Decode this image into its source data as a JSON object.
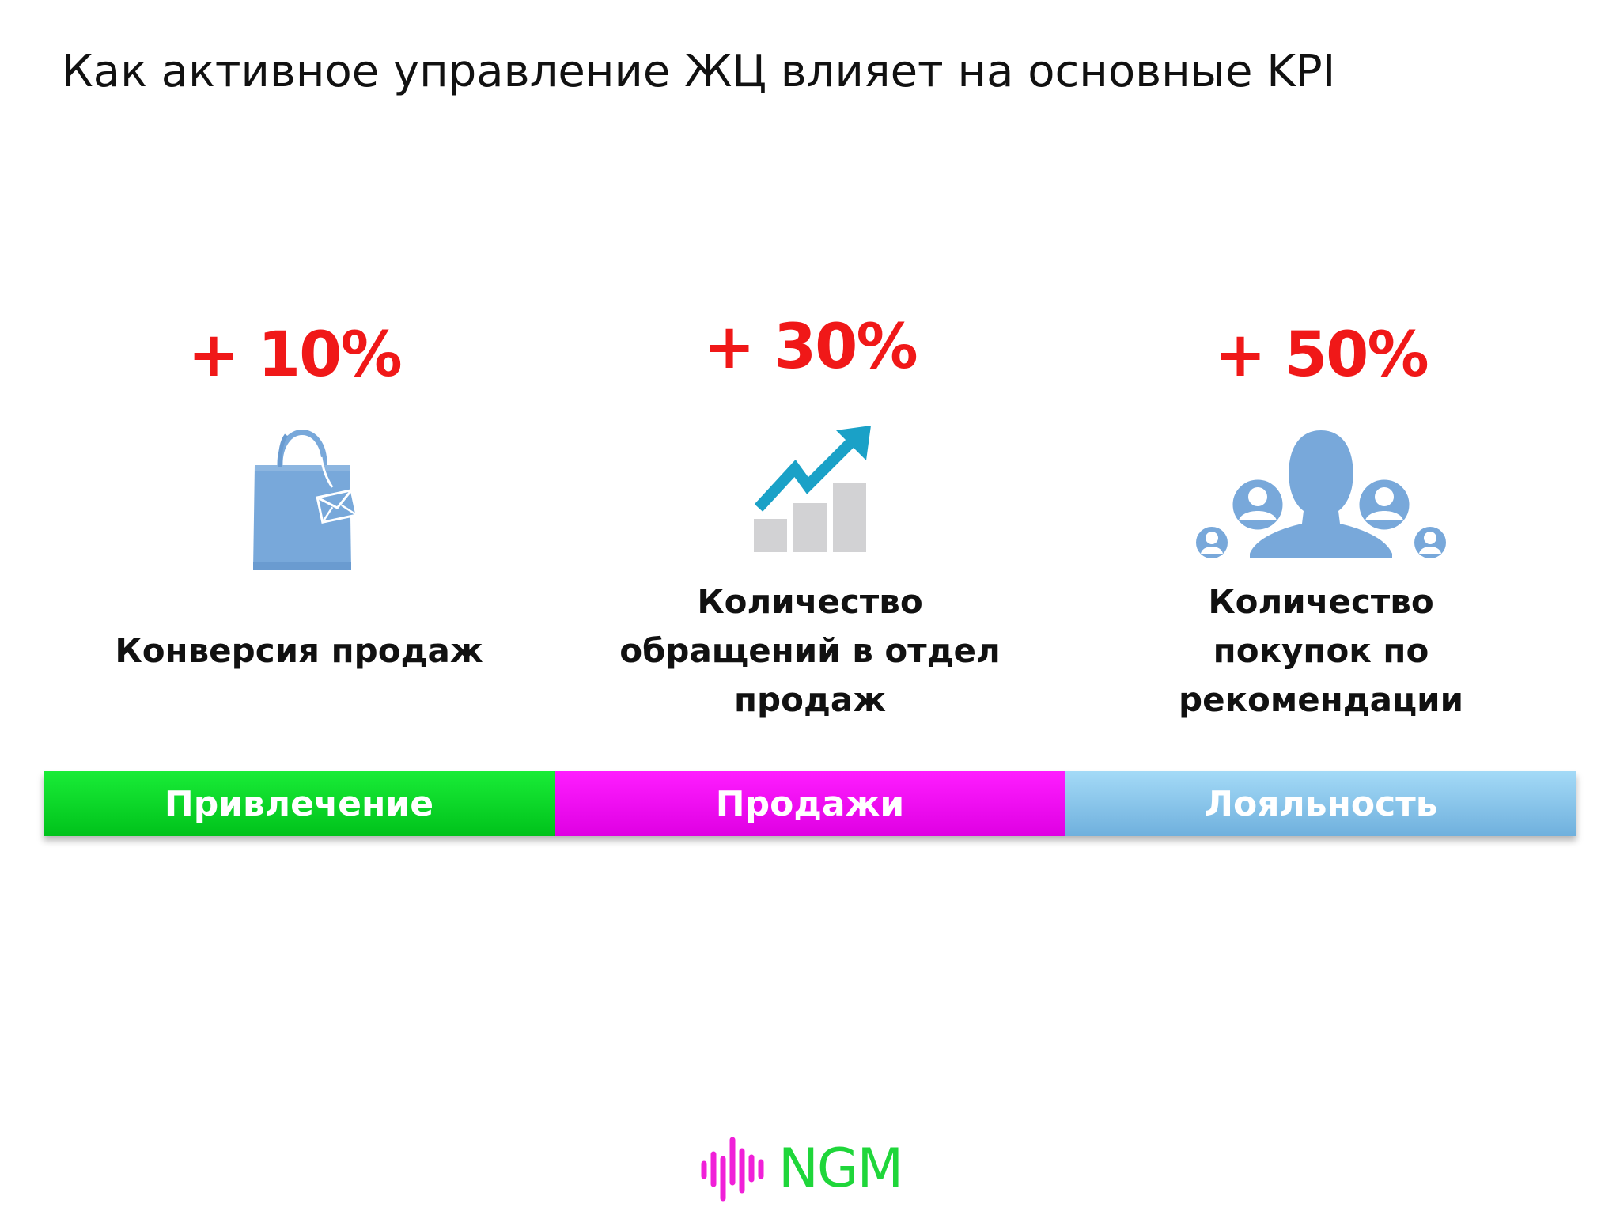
{
  "slide": {
    "title": "Как активное управление ЖЦ влияет на основные KPI"
  },
  "kpis": [
    {
      "value": "+ 10%",
      "icon": "shopping-bag-icon",
      "label_lines": [
        "Конверсия продаж"
      ]
    },
    {
      "value": "+ 30%",
      "icon": "growth-chart-icon",
      "label_lines": [
        "Количество",
        "обращений в отдел",
        "продаж"
      ]
    },
    {
      "value": "+ 50%",
      "icon": "people-network-icon",
      "label_lines": [
        "Количество",
        "покупок по",
        "рекомендации"
      ]
    }
  ],
  "stages": [
    {
      "label": "Привлечение",
      "color": "#0bd82a"
    },
    {
      "label": "Продажи",
      "color": "#f20af4"
    },
    {
      "label": "Лояльность",
      "color": "#8cc7ec"
    }
  ],
  "logo": {
    "text": "NGM",
    "colors": {
      "wave": "#f020d8",
      "text": "#1fd63a"
    }
  },
  "colors": {
    "kpi_value": "#f01818",
    "icon_blue": "#78a8da",
    "arrow_teal": "#1aa1c7",
    "bar_grey": "#d2d2d4"
  }
}
